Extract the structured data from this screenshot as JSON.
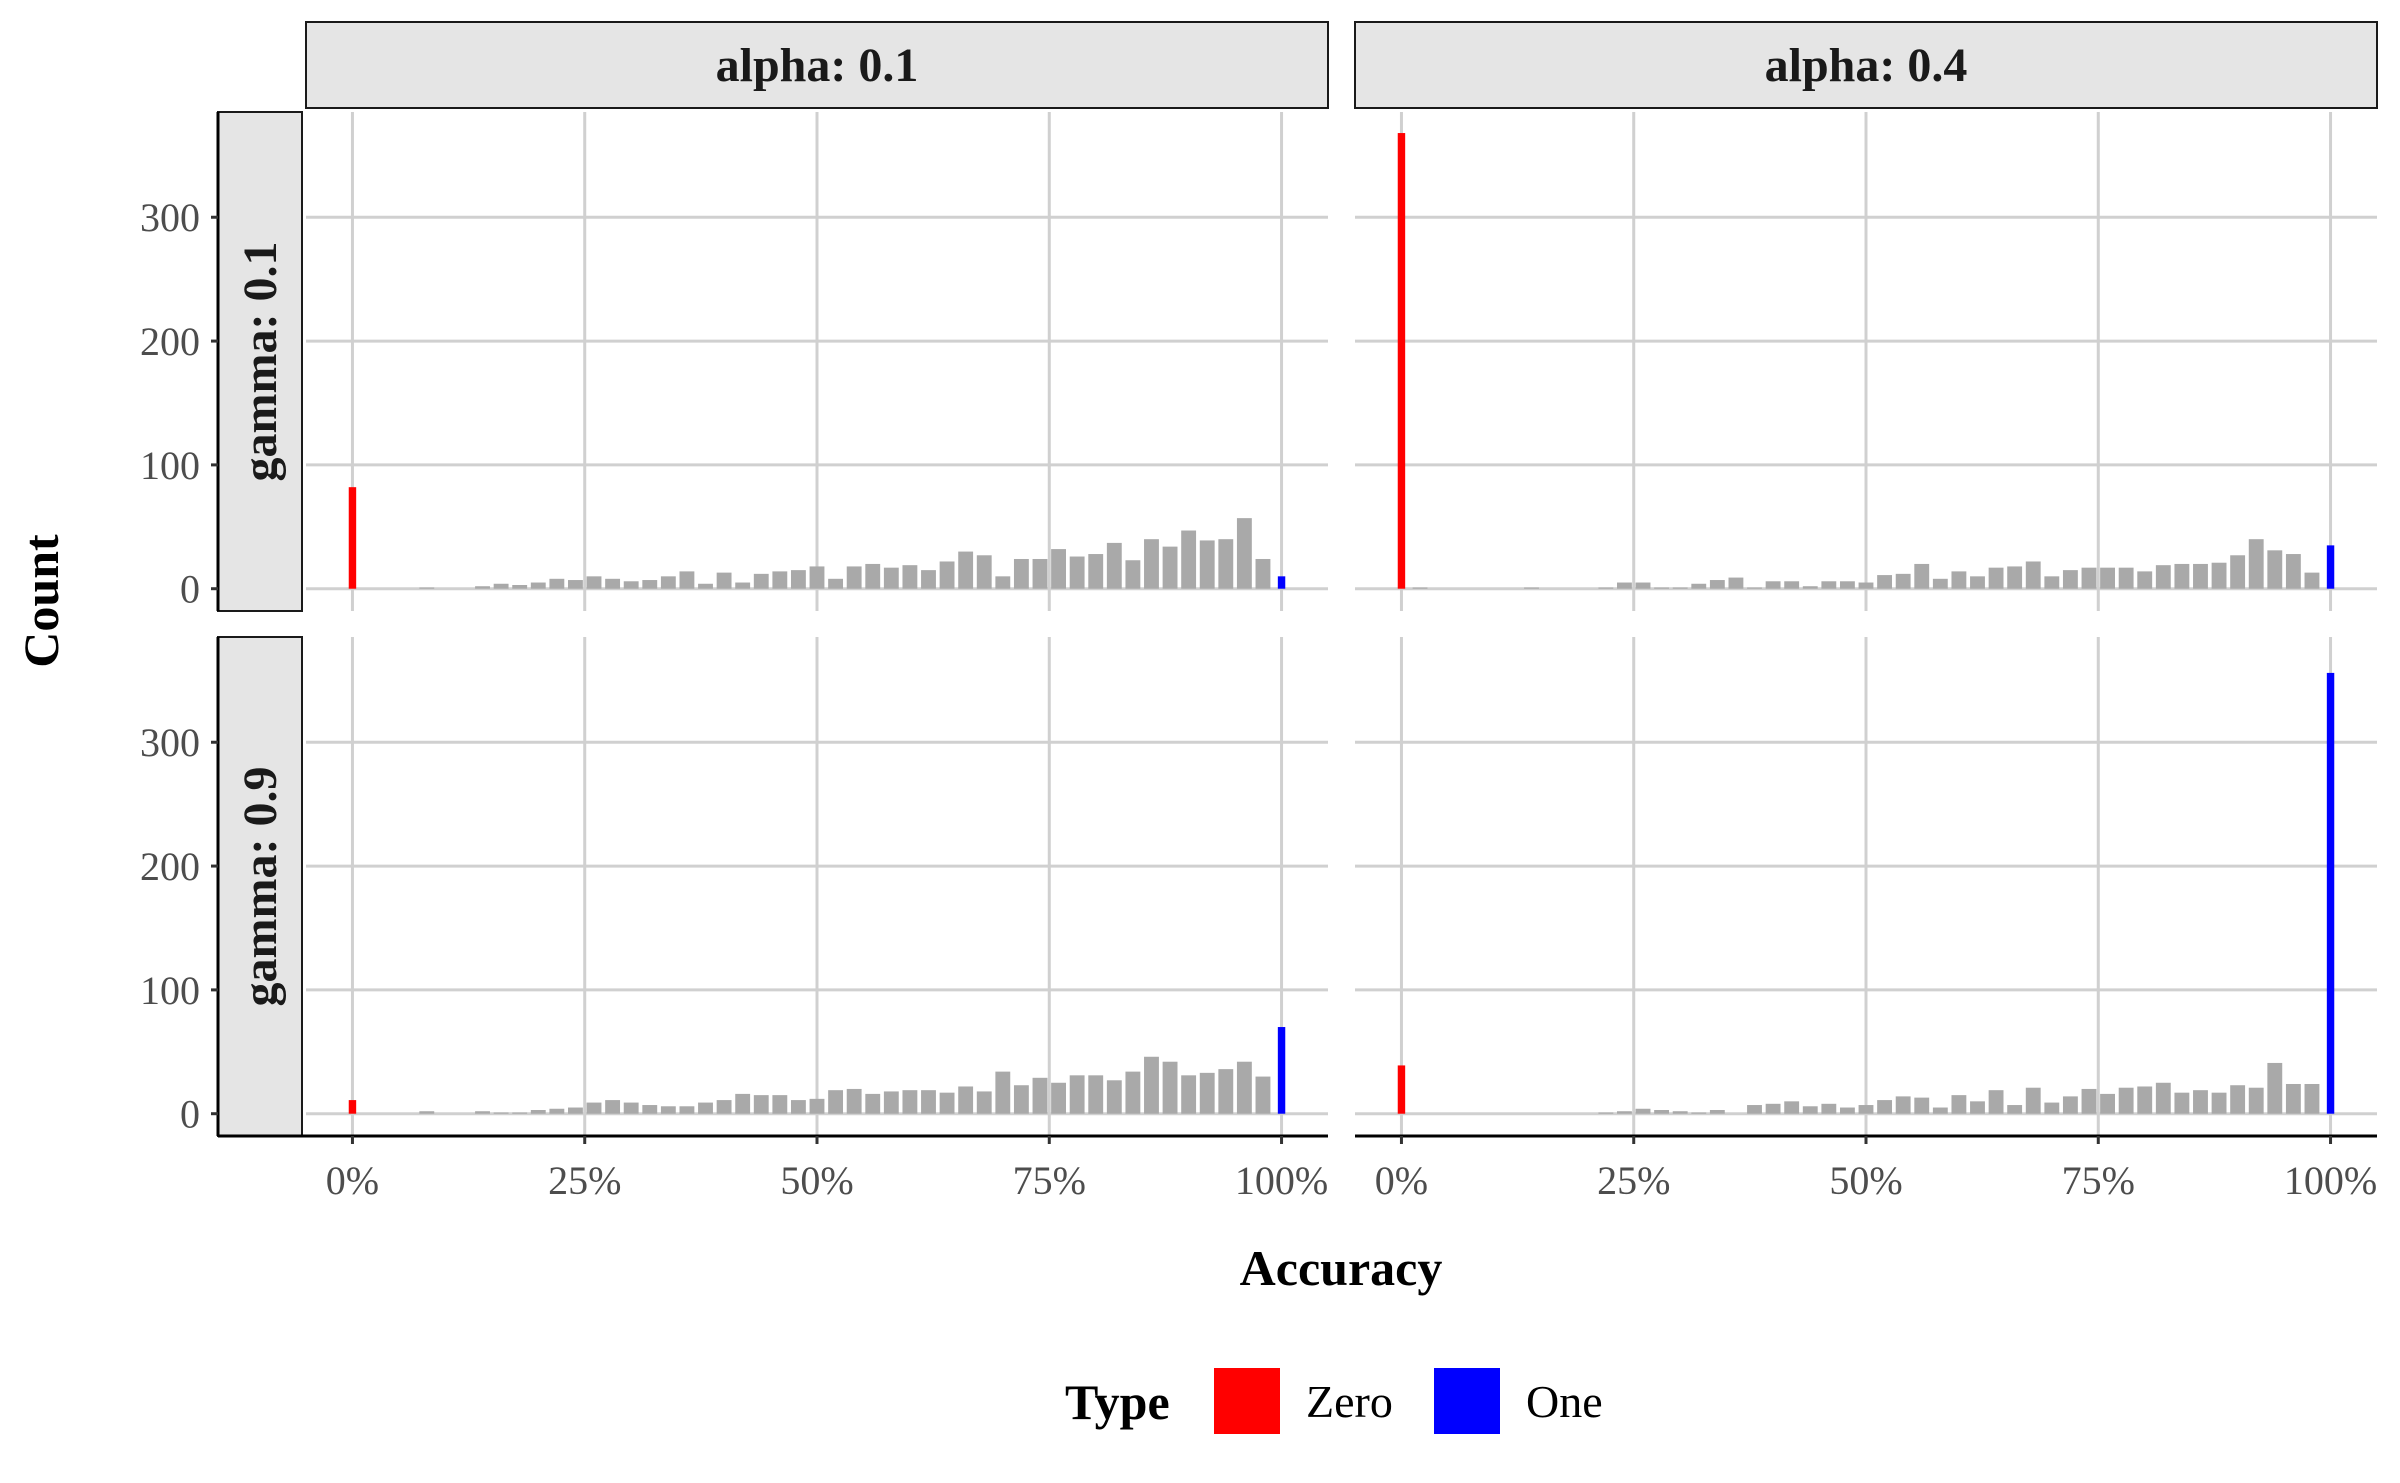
{
  "chart_data": {
    "type": "bar",
    "xlabel": "Accuracy",
    "ylabel": "Count",
    "x_ticks": [
      "0%",
      "25%",
      "50%",
      "75%",
      "100%"
    ],
    "x_tick_values": [
      0,
      25,
      50,
      75,
      100
    ],
    "y_ticks": [
      "0",
      "100",
      "200",
      "300"
    ],
    "y_tick_values": [
      0,
      100,
      200,
      300
    ],
    "xlim": [
      -5,
      105
    ],
    "ylim": [
      -18,
      385
    ],
    "grid": true,
    "legend": {
      "title": "Type",
      "position": "bottom",
      "entries": [
        {
          "name": "Zero",
          "color": "#ff0000"
        },
        {
          "name": "One",
          "color": "#0000ff"
        }
      ]
    },
    "colors": {
      "other": "#a9a9a9",
      "zero": "#ff0000",
      "one": "#0000ff"
    },
    "column_strips": [
      "alpha: 0.1",
      "alpha: 0.4"
    ],
    "row_strips": [
      "gamma: 0.1",
      "gamma: 0.9"
    ],
    "panels": [
      {
        "col": 0,
        "row": 0,
        "zero": 82,
        "one": 10,
        "other_bins": [
          {
            "x": 8,
            "count": 1
          },
          {
            "x": 14,
            "count": 2
          },
          {
            "x": 16,
            "count": 4
          },
          {
            "x": 18,
            "count": 3
          },
          {
            "x": 20,
            "count": 5
          },
          {
            "x": 22,
            "count": 8
          },
          {
            "x": 24,
            "count": 7
          },
          {
            "x": 26,
            "count": 10
          },
          {
            "x": 28,
            "count": 8
          },
          {
            "x": 30,
            "count": 6
          },
          {
            "x": 32,
            "count": 7
          },
          {
            "x": 34,
            "count": 10
          },
          {
            "x": 36,
            "count": 14
          },
          {
            "x": 38,
            "count": 4
          },
          {
            "x": 40,
            "count": 13
          },
          {
            "x": 42,
            "count": 5
          },
          {
            "x": 44,
            "count": 12
          },
          {
            "x": 46,
            "count": 14
          },
          {
            "x": 48,
            "count": 15
          },
          {
            "x": 50,
            "count": 18
          },
          {
            "x": 52,
            "count": 8
          },
          {
            "x": 54,
            "count": 18
          },
          {
            "x": 56,
            "count": 20
          },
          {
            "x": 58,
            "count": 17
          },
          {
            "x": 60,
            "count": 19
          },
          {
            "x": 62,
            "count": 15
          },
          {
            "x": 64,
            "count": 22
          },
          {
            "x": 66,
            "count": 30
          },
          {
            "x": 68,
            "count": 27
          },
          {
            "x": 70,
            "count": 10
          },
          {
            "x": 72,
            "count": 24
          },
          {
            "x": 74,
            "count": 24
          },
          {
            "x": 76,
            "count": 32
          },
          {
            "x": 78,
            "count": 26
          },
          {
            "x": 80,
            "count": 28
          },
          {
            "x": 82,
            "count": 37
          },
          {
            "x": 84,
            "count": 23
          },
          {
            "x": 86,
            "count": 40
          },
          {
            "x": 88,
            "count": 34
          },
          {
            "x": 90,
            "count": 47
          },
          {
            "x": 92,
            "count": 39
          },
          {
            "x": 94,
            "count": 40
          },
          {
            "x": 96,
            "count": 57
          },
          {
            "x": 98,
            "count": 24
          }
        ]
      },
      {
        "col": 1,
        "row": 0,
        "zero": 368,
        "one": 35,
        "other_bins": [
          {
            "x": 2,
            "count": 1
          },
          {
            "x": 14,
            "count": 1
          },
          {
            "x": 22,
            "count": 1
          },
          {
            "x": 24,
            "count": 5
          },
          {
            "x": 26,
            "count": 5
          },
          {
            "x": 28,
            "count": 1
          },
          {
            "x": 30,
            "count": 1
          },
          {
            "x": 32,
            "count": 4
          },
          {
            "x": 34,
            "count": 7
          },
          {
            "x": 36,
            "count": 9
          },
          {
            "x": 38,
            "count": 1
          },
          {
            "x": 40,
            "count": 6
          },
          {
            "x": 42,
            "count": 6
          },
          {
            "x": 44,
            "count": 2
          },
          {
            "x": 46,
            "count": 6
          },
          {
            "x": 48,
            "count": 6
          },
          {
            "x": 50,
            "count": 5
          },
          {
            "x": 52,
            "count": 11
          },
          {
            "x": 54,
            "count": 12
          },
          {
            "x": 56,
            "count": 20
          },
          {
            "x": 58,
            "count": 8
          },
          {
            "x": 60,
            "count": 14
          },
          {
            "x": 62,
            "count": 10
          },
          {
            "x": 64,
            "count": 17
          },
          {
            "x": 66,
            "count": 18
          },
          {
            "x": 68,
            "count": 22
          },
          {
            "x": 70,
            "count": 10
          },
          {
            "x": 72,
            "count": 15
          },
          {
            "x": 74,
            "count": 17
          },
          {
            "x": 76,
            "count": 17
          },
          {
            "x": 78,
            "count": 17
          },
          {
            "x": 80,
            "count": 14
          },
          {
            "x": 82,
            "count": 19
          },
          {
            "x": 84,
            "count": 20
          },
          {
            "x": 86,
            "count": 20
          },
          {
            "x": 88,
            "count": 21
          },
          {
            "x": 90,
            "count": 27
          },
          {
            "x": 92,
            "count": 40
          },
          {
            "x": 94,
            "count": 31
          },
          {
            "x": 96,
            "count": 28
          },
          {
            "x": 98,
            "count": 13
          }
        ]
      },
      {
        "col": 0,
        "row": 1,
        "zero": 11,
        "one": 70,
        "other_bins": [
          {
            "x": 8,
            "count": 2
          },
          {
            "x": 14,
            "count": 2
          },
          {
            "x": 16,
            "count": 1
          },
          {
            "x": 18,
            "count": 1
          },
          {
            "x": 20,
            "count": 3
          },
          {
            "x": 22,
            "count": 4
          },
          {
            "x": 24,
            "count": 5
          },
          {
            "x": 26,
            "count": 9
          },
          {
            "x": 28,
            "count": 11
          },
          {
            "x": 30,
            "count": 9
          },
          {
            "x": 32,
            "count": 7
          },
          {
            "x": 34,
            "count": 6
          },
          {
            "x": 36,
            "count": 6
          },
          {
            "x": 38,
            "count": 9
          },
          {
            "x": 40,
            "count": 11
          },
          {
            "x": 42,
            "count": 16
          },
          {
            "x": 44,
            "count": 15
          },
          {
            "x": 46,
            "count": 15
          },
          {
            "x": 48,
            "count": 11
          },
          {
            "x": 50,
            "count": 12
          },
          {
            "x": 52,
            "count": 19
          },
          {
            "x": 54,
            "count": 20
          },
          {
            "x": 56,
            "count": 16
          },
          {
            "x": 58,
            "count": 18
          },
          {
            "x": 60,
            "count": 19
          },
          {
            "x": 62,
            "count": 19
          },
          {
            "x": 64,
            "count": 17
          },
          {
            "x": 66,
            "count": 22
          },
          {
            "x": 68,
            "count": 18
          },
          {
            "x": 70,
            "count": 34
          },
          {
            "x": 72,
            "count": 23
          },
          {
            "x": 74,
            "count": 29
          },
          {
            "x": 76,
            "count": 25
          },
          {
            "x": 78,
            "count": 31
          },
          {
            "x": 80,
            "count": 31
          },
          {
            "x": 82,
            "count": 27
          },
          {
            "x": 84,
            "count": 34
          },
          {
            "x": 86,
            "count": 46
          },
          {
            "x": 88,
            "count": 42
          },
          {
            "x": 90,
            "count": 31
          },
          {
            "x": 92,
            "count": 33
          },
          {
            "x": 94,
            "count": 36
          },
          {
            "x": 96,
            "count": 42
          },
          {
            "x": 98,
            "count": 30
          }
        ]
      },
      {
        "col": 1,
        "row": 1,
        "zero": 39,
        "one": 356,
        "other_bins": [
          {
            "x": 22,
            "count": 1
          },
          {
            "x": 24,
            "count": 2
          },
          {
            "x": 26,
            "count": 4
          },
          {
            "x": 28,
            "count": 3
          },
          {
            "x": 30,
            "count": 2
          },
          {
            "x": 32,
            "count": 1
          },
          {
            "x": 34,
            "count": 3
          },
          {
            "x": 38,
            "count": 7
          },
          {
            "x": 40,
            "count": 8
          },
          {
            "x": 42,
            "count": 10
          },
          {
            "x": 44,
            "count": 6
          },
          {
            "x": 46,
            "count": 8
          },
          {
            "x": 48,
            "count": 5
          },
          {
            "x": 50,
            "count": 7
          },
          {
            "x": 52,
            "count": 11
          },
          {
            "x": 54,
            "count": 14
          },
          {
            "x": 56,
            "count": 13
          },
          {
            "x": 58,
            "count": 5
          },
          {
            "x": 60,
            "count": 15
          },
          {
            "x": 62,
            "count": 10
          },
          {
            "x": 64,
            "count": 19
          },
          {
            "x": 66,
            "count": 7
          },
          {
            "x": 68,
            "count": 21
          },
          {
            "x": 70,
            "count": 9
          },
          {
            "x": 72,
            "count": 14
          },
          {
            "x": 74,
            "count": 20
          },
          {
            "x": 76,
            "count": 16
          },
          {
            "x": 78,
            "count": 21
          },
          {
            "x": 80,
            "count": 22
          },
          {
            "x": 82,
            "count": 25
          },
          {
            "x": 84,
            "count": 17
          },
          {
            "x": 86,
            "count": 19
          },
          {
            "x": 88,
            "count": 17
          },
          {
            "x": 90,
            "count": 23
          },
          {
            "x": 92,
            "count": 21
          },
          {
            "x": 94,
            "count": 41
          },
          {
            "x": 96,
            "count": 24
          },
          {
            "x": 98,
            "count": 24
          }
        ]
      }
    ]
  }
}
